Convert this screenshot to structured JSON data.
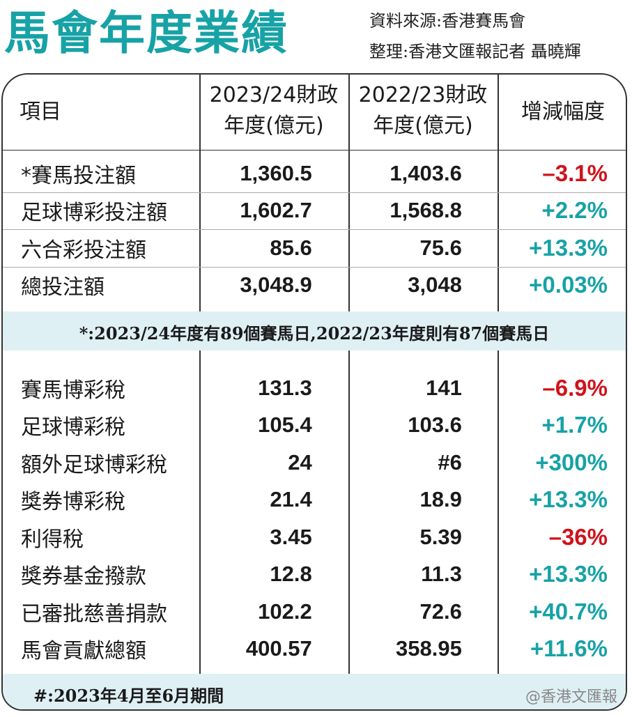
{
  "title": "馬會年度業績",
  "source": "資料來源:香港賽馬會",
  "compiled_by": "整理:香港文匯報記者 聶曉輝",
  "colors": {
    "title": "#17a2a6",
    "increase": "#17a2a6",
    "decrease": "#d0121b",
    "band": "#dff0f4"
  },
  "headers": {
    "item": "項目",
    "fy2324_line1": "2023/24財政",
    "fy2324_line2": "年度(億元)",
    "fy2223_line1": "2022/23財政",
    "fy2223_line2": "年度(億元)",
    "change": "增減幅度"
  },
  "betting_rows": [
    {
      "item": "*賽馬投注額",
      "fy2324": "1,360.5",
      "fy2223": "1,403.6",
      "change": "–3.1%",
      "direction": "down"
    },
    {
      "item": "足球博彩投注額",
      "fy2324": "1,602.7",
      "fy2223": "1,568.8",
      "change": "+2.2%",
      "direction": "up"
    },
    {
      "item": "六合彩投注額",
      "fy2324": "85.6",
      "fy2223": "75.6",
      "change": "+13.3%",
      "direction": "up"
    },
    {
      "item": "總投注額",
      "fy2324": "3,048.9",
      "fy2223": "3,048",
      "change": "+0.03%",
      "direction": "up"
    }
  ],
  "note1": "*:2023/24年度有89個賽馬日,2022/23年度則有87個賽馬日",
  "tax_rows": [
    {
      "item": "賽馬博彩稅",
      "fy2324": "131.3",
      "fy2223": "141",
      "change": "–6.9%",
      "direction": "down"
    },
    {
      "item": "足球博彩稅",
      "fy2324": "105.4",
      "fy2223": "103.6",
      "change": "+1.7%",
      "direction": "up"
    },
    {
      "item": "額外足球博彩稅",
      "fy2324": "24",
      "fy2223": "#6",
      "change": "+300%",
      "direction": "up"
    },
    {
      "item": "獎券博彩稅",
      "fy2324": "21.4",
      "fy2223": "18.9",
      "change": "+13.3%",
      "direction": "up"
    },
    {
      "item": "利得稅",
      "fy2324": "3.45",
      "fy2223": "5.39",
      "change": "–36%",
      "direction": "down"
    },
    {
      "item": "獎券基金撥款",
      "fy2324": "12.8",
      "fy2223": "11.3",
      "change": "+13.3%",
      "direction": "up"
    },
    {
      "item": "已審批慈善捐款",
      "fy2324": "102.2",
      "fy2223": "72.6",
      "change": "+40.7%",
      "direction": "up"
    },
    {
      "item": "馬會貢獻總額",
      "fy2324": "400.57",
      "fy2223": "358.95",
      "change": "+11.6%",
      "direction": "up"
    }
  ],
  "note2": "#:2023年4月至6月期間",
  "watermark": "@香港文匯報"
}
